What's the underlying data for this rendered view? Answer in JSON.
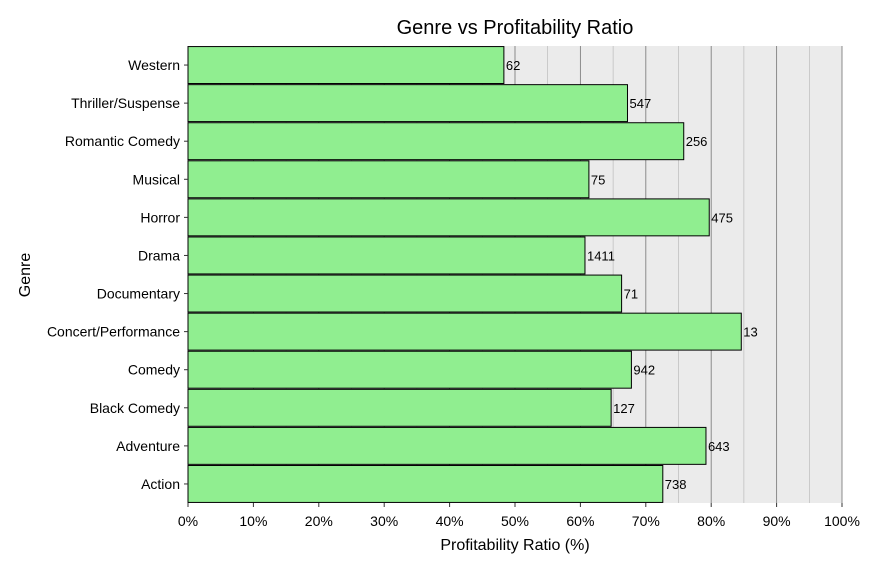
{
  "chart_data": {
    "type": "bar",
    "orientation": "horizontal",
    "title": "Genre vs Profitability Ratio",
    "xlabel": "Profitability Ratio (%)",
    "ylabel": "Genre",
    "xlim": [
      0,
      100
    ],
    "x_ticks": [
      "0%",
      "10%",
      "20%",
      "30%",
      "40%",
      "50%",
      "60%",
      "70%",
      "80%",
      "90%",
      "100%"
    ],
    "grid": true,
    "colors": {
      "bar": "#90ee90",
      "bar_stroke": "#000000",
      "panel": "#ebebeb",
      "grid_major": "#808080",
      "grid_minor": "#b3b3b3"
    },
    "categories": [
      "Western",
      "Thriller/Suspense",
      "Romantic Comedy",
      "Musical",
      "Horror",
      "Drama",
      "Documentary",
      "Concert/Performance",
      "Comedy",
      "Black Comedy",
      "Adventure",
      "Action"
    ],
    "values": [
      48.3,
      67.2,
      75.8,
      61.3,
      79.7,
      60.7,
      66.3,
      84.6,
      67.8,
      64.7,
      79.2,
      72.6
    ],
    "data_labels": [
      "62",
      "547",
      "256",
      "75",
      "475",
      "1411",
      "71",
      "13",
      "942",
      "127",
      "643",
      "738"
    ]
  }
}
